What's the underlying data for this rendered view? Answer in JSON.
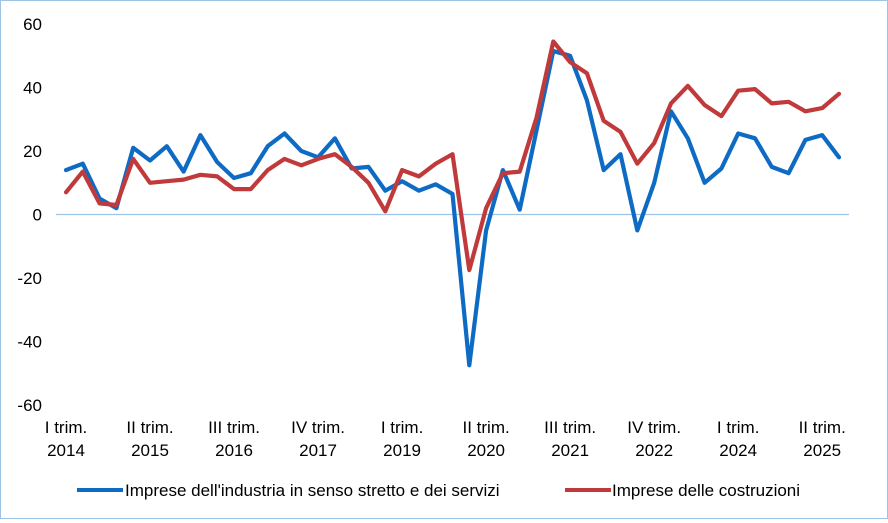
{
  "chart_data": {
    "type": "line",
    "title": "",
    "xlabel": "",
    "ylabel": "",
    "ylim": [
      -60,
      60
    ],
    "yticks": [
      -60,
      -40,
      -20,
      0,
      20,
      40,
      60
    ],
    "grid": false,
    "legend_position": "bottom",
    "x_tick_labels": [
      {
        "index": 0,
        "line1": "I trim.",
        "line2": "2014"
      },
      {
        "index": 5,
        "line1": "II trim.",
        "line2": "2015"
      },
      {
        "index": 10,
        "line1": "III trim.",
        "line2": "2016"
      },
      {
        "index": 15,
        "line1": "IV trim.",
        "line2": "2017"
      },
      {
        "index": 20,
        "line1": "I trim.",
        "line2": "2019"
      },
      {
        "index": 25,
        "line1": "II trim.",
        "line2": "2020"
      },
      {
        "index": 30,
        "line1": "III trim.",
        "line2": "2021"
      },
      {
        "index": 35,
        "line1": "IV trim.",
        "line2": "2022"
      },
      {
        "index": 40,
        "line1": "I trim.",
        "line2": "2024"
      },
      {
        "index": 45,
        "line1": "II trim.",
        "line2": "2025"
      }
    ],
    "series": [
      {
        "name": "Imprese dell'industria in senso stretto e dei servizi",
        "color": "#0e6bc4",
        "values": [
          14,
          16,
          5,
          2,
          21,
          17,
          21.5,
          13.5,
          25,
          16.5,
          11.5,
          13,
          21.5,
          25.5,
          20,
          18,
          24,
          14.5,
          15,
          7.5,
          10.5,
          7.5,
          9.5,
          6.5,
          -47.5,
          -5,
          14,
          1.5,
          26.5,
          51.5,
          50,
          36,
          14,
          19,
          -5,
          10,
          32.5,
          24,
          10,
          14.5,
          25.5,
          24,
          15,
          13,
          23.5,
          25,
          18
        ]
      },
      {
        "name": "Imprese delle costruzioni",
        "color": "#c0393b",
        "values": [
          7,
          13.5,
          3.5,
          3,
          17.5,
          10,
          10.5,
          11,
          12.5,
          12,
          8,
          8,
          14,
          17.5,
          15.5,
          17.5,
          19,
          15,
          10,
          1,
          14,
          12,
          16,
          19,
          -17.5,
          2,
          13,
          13.5,
          30.5,
          54.5,
          48,
          44.5,
          29.5,
          26,
          16,
          22.5,
          35,
          40.5,
          34.5,
          31,
          39,
          39.5,
          35,
          35.5,
          32.5,
          33.5,
          38
        ]
      }
    ]
  }
}
